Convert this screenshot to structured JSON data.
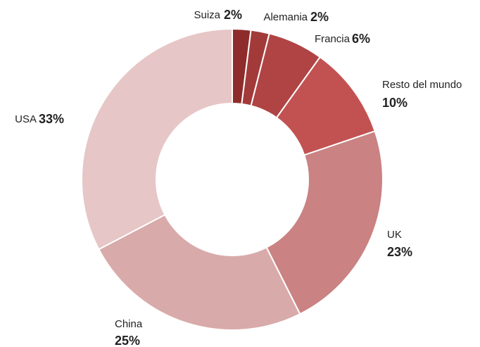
{
  "chart_data": {
    "type": "donut",
    "categories": [
      "Suiza",
      "Alemania",
      "Francia",
      "Resto del mundo",
      "UK",
      "China",
      "USA"
    ],
    "values": [
      2,
      2,
      6,
      10,
      23,
      25,
      33
    ],
    "value_labels": [
      "2%",
      "2%",
      "6%",
      "10%",
      "23%",
      "25%",
      "33%"
    ],
    "colors": [
      "#8e2c2c",
      "#a33a3a",
      "#b04444",
      "#c25252",
      "#ca8282",
      "#d9aaaa",
      "#e6c6c6"
    ]
  }
}
